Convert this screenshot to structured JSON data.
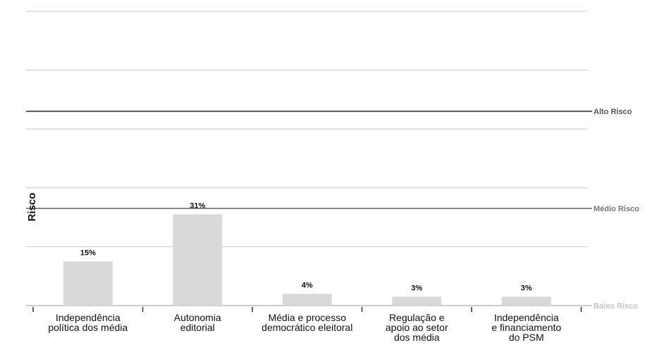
{
  "chart_data": {
    "type": "bar",
    "title": "",
    "xlabel": "",
    "ylabel": "Risco",
    "ylim": [
      0,
      100
    ],
    "grid": true,
    "categories": [
      [
        "Independência",
        "política dos média"
      ],
      [
        "Autonomia",
        "editorial"
      ],
      [
        "Média e processo",
        "democrático eleitoral"
      ],
      [
        "Regulação e",
        "apoio ao setor",
        "dos média"
      ],
      [
        "Independência",
        "e financiamento",
        "do PSM"
      ]
    ],
    "values": [
      15,
      31,
      4,
      3,
      3
    ],
    "value_labels": [
      "15%",
      "31%",
      "4%",
      "3%",
      "3%"
    ],
    "bar_color": "#d9d9d9",
    "thresholds": [
      {
        "label": "Alto Risco",
        "value": 66,
        "color": "#555555",
        "text_color": "#555555"
      },
      {
        "label": "Médio Risco",
        "value": 33,
        "color": "#888888",
        "text_color": "#777777"
      },
      {
        "label": "Baixo Risco",
        "value": 0,
        "color": "#cccccc",
        "text_color": "#c4c4c4"
      }
    ]
  }
}
